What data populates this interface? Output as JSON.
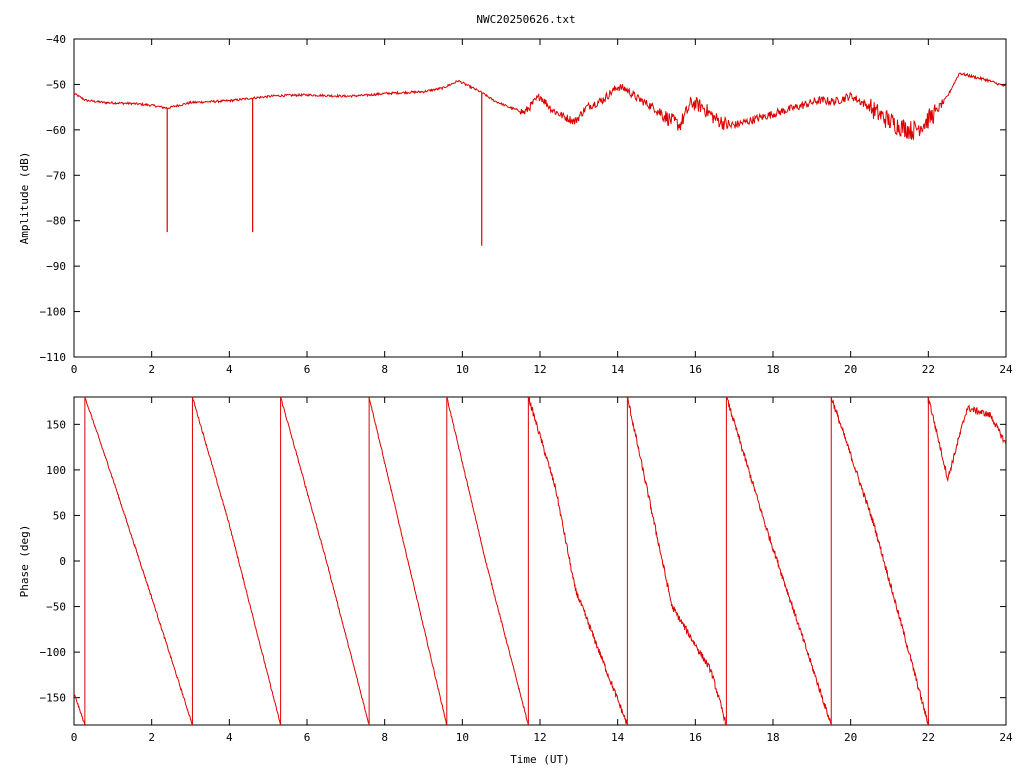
{
  "page": {
    "title": "NWC20250626.txt",
    "colors": {
      "background": "#ffffff",
      "series": "#dd0000",
      "axes": "#000000"
    }
  },
  "chart_data": [
    {
      "type": "line",
      "title": "NWC20250626.txt",
      "xlabel": "",
      "ylabel": "Amplitude (dB)",
      "xlim": [
        0,
        24
      ],
      "ylim": [
        -110,
        -40
      ],
      "xticks": [
        0,
        2,
        4,
        6,
        8,
        10,
        12,
        14,
        16,
        18,
        20,
        22,
        24
      ],
      "yticks": [
        -110,
        -100,
        -90,
        -80,
        -70,
        -60,
        -50,
        -40
      ],
      "grid": false,
      "series": [
        {
          "color": "#dd0000",
          "x": [
            0,
            0.3,
            0.8,
            1.5,
            2.0,
            2.4,
            3.0,
            3.5,
            4.0,
            4.6,
            5.2,
            6.0,
            7.0,
            7.5,
            8.0,
            9.0,
            9.5,
            9.9,
            10.2,
            10.5,
            10.8,
            11.2,
            11.6,
            12.0,
            12.3,
            12.6,
            12.9,
            13.2,
            13.6,
            14.0,
            14.2,
            14.5,
            15.0,
            15.3,
            15.6,
            15.9,
            16.2,
            16.5,
            16.9,
            17.2,
            17.6,
            18.0,
            18.4,
            18.8,
            19.2,
            19.6,
            20.0,
            20.4,
            20.8,
            21.2,
            21.6,
            21.9,
            22.2,
            22.5,
            22.8,
            23.1,
            23.5,
            24.0
          ],
          "y": [
            -52,
            -53.5,
            -54,
            -54.2,
            -54.6,
            -55.2,
            -54.0,
            -53.8,
            -53.6,
            -53.0,
            -52.5,
            -52.3,
            -52.6,
            -52.4,
            -52.0,
            -51.6,
            -50.8,
            -49.2,
            -50.5,
            -51.8,
            -53.5,
            -55.0,
            -56.2,
            -52.5,
            -55.5,
            -57.0,
            -58.2,
            -55.0,
            -53.5,
            -50.5,
            -51.0,
            -53.0,
            -55.5,
            -57.5,
            -59.0,
            -54.0,
            -55.0,
            -57.5,
            -59.2,
            -58.5,
            -57.5,
            -56.5,
            -55.5,
            -54.5,
            -53.5,
            -53.8,
            -52.5,
            -54.5,
            -57.0,
            -59.0,
            -60.2,
            -58.5,
            -56.0,
            -52.5,
            -47.5,
            -48.2,
            -49.0,
            -50.5
          ],
          "spikes": [
            {
              "x": 2.4,
              "y": -82.5
            },
            {
              "x": 4.6,
              "y": -82.5
            },
            {
              "x": 10.5,
              "y": -85.5
            }
          ]
        }
      ]
    },
    {
      "type": "line",
      "title": "",
      "xlabel": "Time (UT)",
      "ylabel": "Phase (deg)",
      "xlim": [
        0,
        24
      ],
      "ylim": [
        -180,
        180
      ],
      "xticks": [
        0,
        2,
        4,
        6,
        8,
        10,
        12,
        14,
        16,
        18,
        20,
        22,
        24
      ],
      "yticks": [
        -150,
        -100,
        -50,
        0,
        50,
        100,
        150
      ],
      "grid": false,
      "series": [
        {
          "color": "#dd0000",
          "segments": [
            {
              "x": [
                0,
                0.28
              ],
              "y": [
                -145,
                -180
              ]
            },
            {
              "x": [
                0.28,
                1.0,
                2.0,
                3.05
              ],
              "y": [
                180,
                90,
                -40,
                -180
              ]
            },
            {
              "x": [
                3.05,
                4.0,
                5.32
              ],
              "y": [
                180,
                40,
                -180
              ]
            },
            {
              "x": [
                5.32,
                6.5,
                7.6
              ],
              "y": [
                180,
                0,
                -180
              ]
            },
            {
              "x": [
                7.6,
                8.6,
                9.6
              ],
              "y": [
                180,
                0,
                -180
              ]
            },
            {
              "x": [
                9.6,
                10.6,
                11.7
              ],
              "y": [
                180,
                0,
                -180
              ]
            },
            {
              "x": [
                11.7,
                12.4,
                12.9,
                14.25
              ],
              "y": [
                180,
                80,
                -30,
                -180
              ]
            },
            {
              "x": [
                14.25,
                15.4,
                16.4,
                16.8
              ],
              "y": [
                180,
                -50,
                -120,
                -180
              ]
            },
            {
              "x": [
                16.8,
                17.8,
                18.5,
                19.5
              ],
              "y": [
                180,
                40,
                -50,
                -180
              ]
            },
            {
              "x": [
                19.5,
                20.6,
                21.5,
                22.0
              ],
              "y": [
                180,
                40,
                -100,
                -180
              ]
            },
            {
              "x": [
                22.0,
                22.5,
                23.0,
                23.6,
                24.0
              ],
              "y": [
                180,
                90,
                168,
                160,
                128
              ]
            }
          ]
        }
      ]
    }
  ]
}
